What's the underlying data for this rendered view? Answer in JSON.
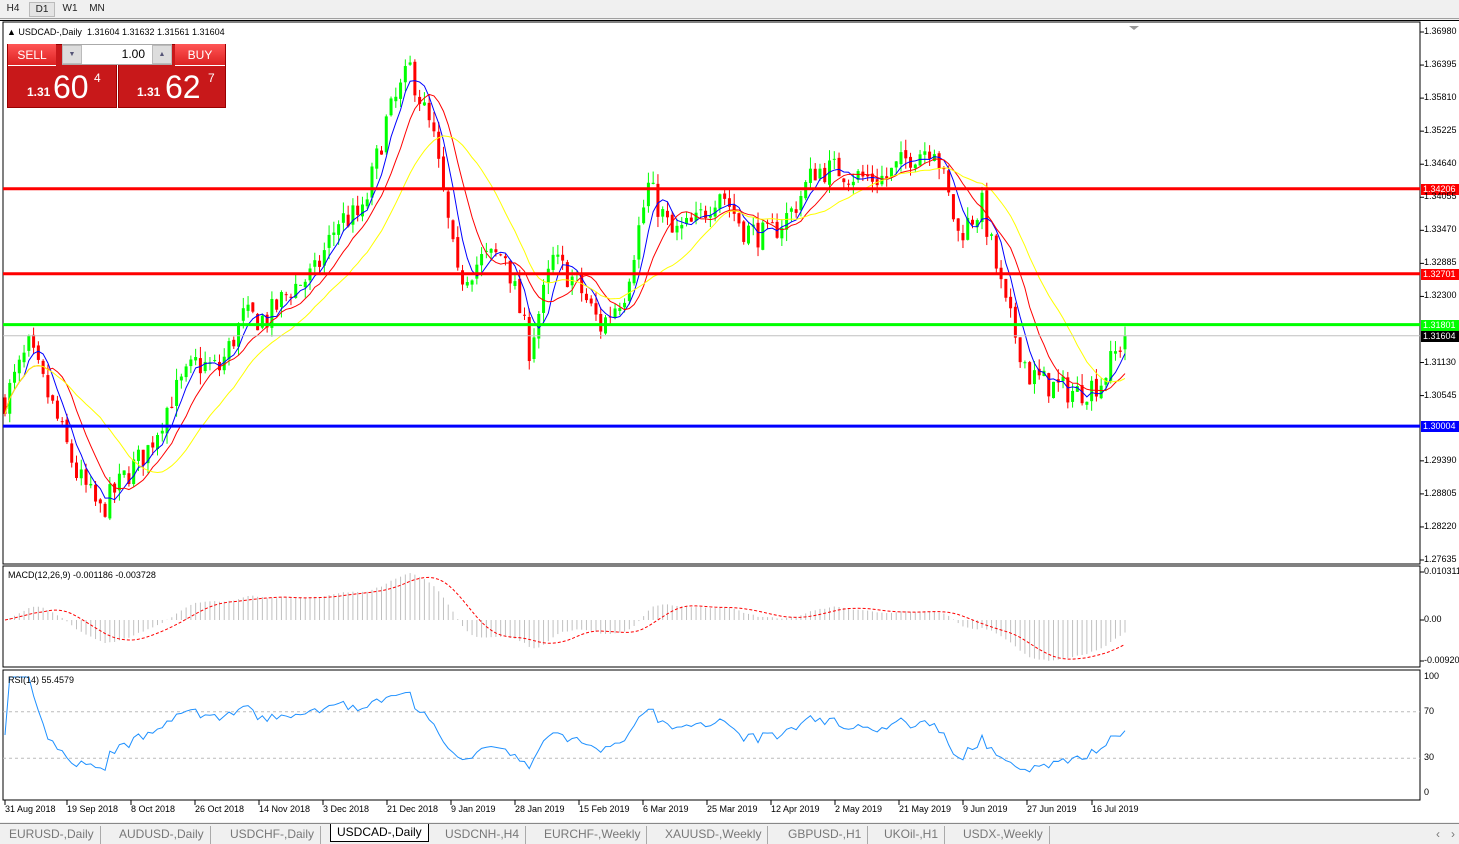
{
  "timeframes": [
    "H4",
    "D1",
    "W1",
    "MN"
  ],
  "active_timeframe": "D1",
  "header": {
    "symbol": "USDCAD-,Daily",
    "ohlc": "1.31604 1.31632 1.31561 1.31604"
  },
  "trade_panel": {
    "sell_label": "SELL",
    "buy_label": "BUY",
    "lot": "1.00",
    "sell": {
      "big": "1.31",
      "main": "60",
      "pip": "4"
    },
    "buy": {
      "big": "1.31",
      "main": "62",
      "pip": "7"
    }
  },
  "price_axis": [
    "1.36980",
    "1.36395",
    "1.35810",
    "1.35225",
    "1.34640",
    "1.34055",
    "1.33470",
    "1.32885",
    "1.32300",
    "1.31130",
    "1.30545",
    "1.29390",
    "1.28805",
    "1.28220",
    "1.27635"
  ],
  "levels": [
    {
      "price": 1.34206,
      "label": "1.34206",
      "color": "#ff0000"
    },
    {
      "price": 1.32701,
      "label": "1.32701",
      "color": "#ff0000"
    },
    {
      "price": 1.31801,
      "label": "1.31801",
      "color": "#00ff00"
    },
    {
      "price": 1.30004,
      "label": "1.30004",
      "color": "#0000ff"
    }
  ],
  "current_price": {
    "price": 1.31604,
    "label": "1.31604"
  },
  "macd": {
    "label": "MACD(12,26,9) -0.001186 -0.003728",
    "axis": [
      "0.010311",
      "0.00",
      "-0.00920"
    ]
  },
  "rsi": {
    "label": "RSI(14) 55.4579",
    "axis": [
      "100",
      "70",
      "30",
      "0"
    ]
  },
  "dates": [
    "31 Aug 2018",
    "19 Sep 2018",
    "8 Oct 2018",
    "26 Oct 2018",
    "14 Nov 2018",
    "3 Dec 2018",
    "21 Dec 2018",
    "9 Jan 2019",
    "28 Jan 2019",
    "15 Feb 2019",
    "6 Mar 2019",
    "25 Mar 2019",
    "12 Apr 2019",
    "2 May 2019",
    "21 May 2019",
    "9 Jun 2019",
    "27 Jun 2019",
    "16 Jul 2019"
  ],
  "tabs": [
    "EURUSD-,Daily",
    "AUDUSD-,Daily",
    "USDCHF-,Daily",
    "USDCAD-,Daily",
    "USDCNH-,H4",
    "EURCHF-,Weekly",
    "XAUUSD-,Weekly",
    "GBPUSD-,H1",
    "UKOil-,H1",
    "USDX-,Weekly"
  ],
  "active_tab": "USDCAD-,Daily",
  "colors": {
    "up": "#00ff00",
    "down": "#ff0000",
    "ma_fast": "#0000ff",
    "ma_mid": "#ff0000",
    "ma_slow": "#ffff00",
    "rsi": "#1e90ff",
    "macd_hist": "#c0c0c0",
    "macd_signal": "#ff0000"
  },
  "chart_data": {
    "type": "candlestick",
    "ylim": [
      1.27635,
      1.3698
    ],
    "weekly_closes": [
      1.3047,
      1.3139,
      1.3034,
      1.2917,
      1.2849,
      1.2909,
      1.296,
      1.3051,
      1.3111,
      1.3102,
      1.3193,
      1.319,
      1.3244,
      1.3271,
      1.3365,
      1.3374,
      1.3539,
      1.3634,
      1.3507,
      1.3259,
      1.3295,
      1.3305,
      1.3139,
      1.3294,
      1.3253,
      1.3177,
      1.3239,
      1.3425,
      1.3339,
      1.336,
      1.342,
      1.335,
      1.3335,
      1.338,
      1.3454,
      1.3454,
      1.344,
      1.344,
      1.348,
      1.35,
      1.334,
      1.339,
      1.321,
      1.309,
      1.307,
      1.306,
      1.308,
      1.316
    ]
  }
}
